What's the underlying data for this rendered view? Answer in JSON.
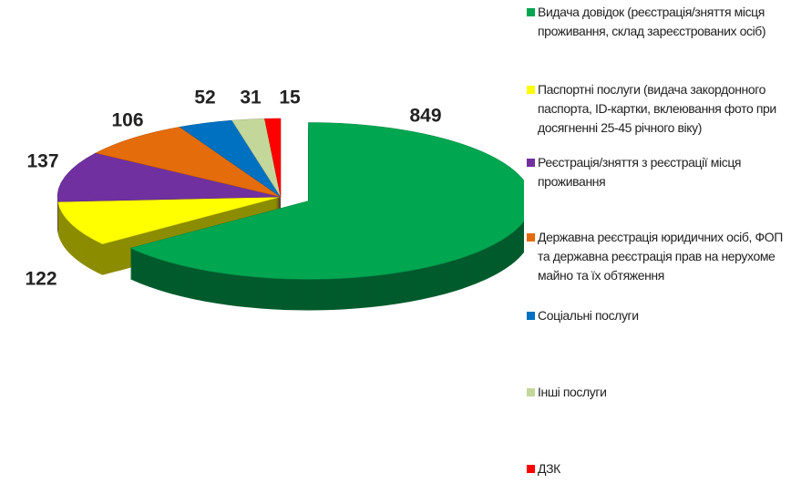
{
  "chart_data": {
    "type": "pie",
    "categories": [
      "Видача довідок (реєстрація/зняття місця проживання, склад зареєстрованих осіб)",
      "Паспортні послуги (видача закордонного паспорта, ID-картки, вклеювання фото при досягненні 25-45 річного віку)",
      "Реєстрація/зняття з реєстрації місця проживання",
      "Державна реєстрація юридичних осіб, ФОП та державна реєстрація прав на нерухоме майно та їх обтяження",
      "Соціальні послуги",
      "Інші послуги",
      "ДЗК"
    ],
    "values": [
      849,
      122,
      137,
      106,
      52,
      31,
      15
    ],
    "colors": [
      "#00a650",
      "#ffff00",
      "#7030a0",
      "#e46c0a",
      "#0070c0",
      "#c4d79b",
      "#ff0000"
    ]
  }
}
